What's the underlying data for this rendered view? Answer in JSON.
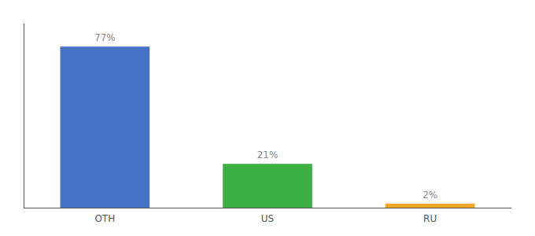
{
  "chart_data": {
    "type": "bar",
    "categories": [
      "OTH",
      "US",
      "RU"
    ],
    "values": [
      77,
      21,
      2
    ],
    "value_labels": [
      "77%",
      "21%",
      "2%"
    ],
    "colors": [
      "#4472c4",
      "#3cb043",
      "#f5a623"
    ],
    "ylim": [
      0,
      88
    ],
    "data_labels": true,
    "tick_labels": "x",
    "grid": false
  }
}
